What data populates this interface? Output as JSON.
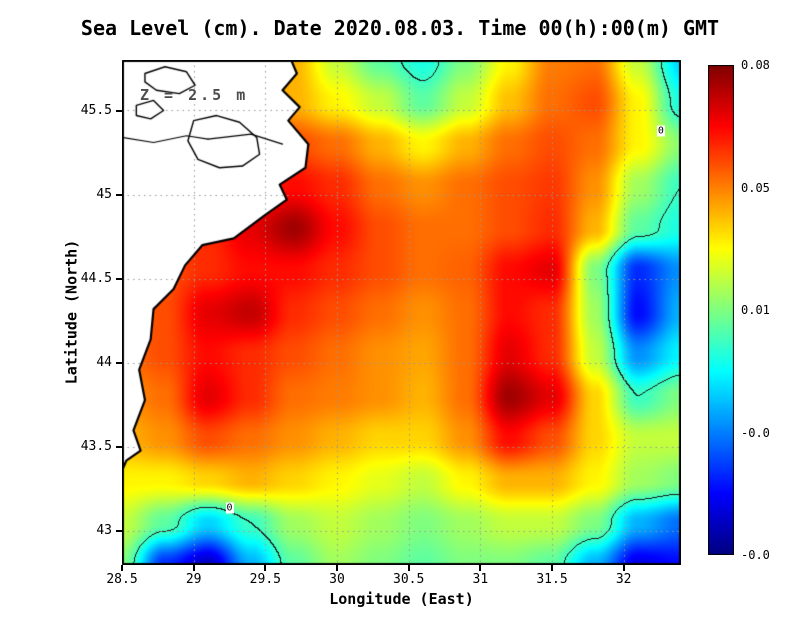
{
  "title": "Sea Level (cm). Date 2020.08.03. Time 00(h):00(m) GMT",
  "annotation": "Z = 2.5 m",
  "axes": {
    "x_label": "Longitude (East)",
    "y_label": "Latitude (North)",
    "x_ticks": [
      "28.5",
      "29",
      "29.5",
      "30",
      "30.5",
      "31",
      "31.5",
      "32"
    ],
    "x_tick_values": [
      28.5,
      29,
      29.5,
      30,
      30.5,
      31,
      31.5,
      32
    ],
    "y_ticks": [
      "43",
      "43.5",
      "44",
      "44.5",
      "45",
      "45.5"
    ],
    "y_tick_values": [
      43,
      43.5,
      44,
      44.5,
      45,
      45.5
    ]
  },
  "colorbar": {
    "labels": [
      "0.08",
      "0.05",
      "0.01",
      "-0.0",
      "-0.0"
    ],
    "vmin": -0.065,
    "vmax": 0.085
  },
  "chart_data": {
    "type": "heatmap",
    "title": "Sea Level (cm). Date 2020.08.03. Time 00(h):00(m) GMT",
    "xlabel": "Longitude (East)",
    "ylabel": "Latitude (North)",
    "xlim": [
      28.5,
      32.4
    ],
    "ylim": [
      42.8,
      45.8
    ],
    "colormap": "jet",
    "grid": "dotted",
    "legend_position": "right-colorbar",
    "zero_contour_label": "0",
    "zero_contour_labels": [
      {
        "lon": 29.25,
        "lat": 43.14
      },
      {
        "lon": 32.26,
        "lat": 45.38
      }
    ],
    "lon": [
      28.5,
      28.8,
      29.1,
      29.4,
      29.7,
      30.0,
      30.3,
      30.6,
      30.9,
      31.2,
      31.5,
      31.8,
      32.1,
      32.4
    ],
    "lat": [
      45.8,
      45.55,
      45.3,
      45.05,
      44.8,
      44.55,
      44.3,
      44.05,
      43.8,
      43.55,
      43.3,
      43.05,
      42.8
    ],
    "values_cm": [
      [
        0.05,
        0.05,
        0.05,
        0.05,
        0.04,
        0.02,
        0.005,
        -0.005,
        0.01,
        0.03,
        0.048,
        0.05,
        0.02,
        -0.015
      ],
      [
        0.05,
        0.05,
        0.05,
        0.05,
        0.04,
        0.03,
        0.02,
        0.005,
        0.02,
        0.038,
        0.05,
        0.055,
        0.03,
        -0.005
      ],
      [
        0.05,
        0.05,
        0.05,
        0.055,
        0.055,
        0.05,
        0.04,
        0.03,
        0.04,
        0.05,
        0.055,
        0.05,
        0.03,
        0.012
      ],
      [
        0.055,
        0.055,
        0.055,
        0.06,
        0.065,
        0.06,
        0.05,
        0.045,
        0.05,
        0.055,
        0.058,
        0.045,
        0.015,
        0.0
      ],
      [
        0.055,
        0.055,
        0.06,
        0.07,
        0.08,
        0.065,
        0.055,
        0.05,
        0.05,
        0.055,
        0.06,
        0.04,
        0.005,
        -0.005
      ],
      [
        0.05,
        0.055,
        0.06,
        0.065,
        0.065,
        0.06,
        0.055,
        0.05,
        0.052,
        0.065,
        0.07,
        0.01,
        -0.04,
        -0.025
      ],
      [
        0.05,
        0.055,
        0.07,
        0.075,
        0.06,
        0.055,
        0.05,
        0.045,
        0.05,
        0.065,
        0.06,
        0.015,
        -0.045,
        -0.02
      ],
      [
        0.05,
        0.055,
        0.065,
        0.06,
        0.055,
        0.05,
        0.045,
        0.042,
        0.05,
        0.07,
        0.06,
        0.02,
        -0.025,
        -0.01
      ],
      [
        0.045,
        0.05,
        0.07,
        0.06,
        0.05,
        0.048,
        0.045,
        0.04,
        0.05,
        0.08,
        0.07,
        0.035,
        0.0,
        0.01
      ],
      [
        0.04,
        0.045,
        0.055,
        0.05,
        0.045,
        0.04,
        0.035,
        0.035,
        0.045,
        0.065,
        0.055,
        0.035,
        0.02,
        0.02
      ],
      [
        0.03,
        0.03,
        0.035,
        0.04,
        0.035,
        0.03,
        0.025,
        0.02,
        0.03,
        0.04,
        0.04,
        0.03,
        0.015,
        0.01
      ],
      [
        0.02,
        0.005,
        -0.015,
        0.0,
        0.015,
        0.02,
        0.015,
        0.01,
        0.015,
        0.02,
        0.02,
        0.01,
        -0.02,
        -0.03
      ],
      [
        0.01,
        -0.04,
        -0.055,
        -0.02,
        0.005,
        0.015,
        0.01,
        0.005,
        0.01,
        0.01,
        0.005,
        -0.02,
        -0.05,
        -0.045
      ]
    ],
    "colors": {
      "land": "#ffffff",
      "coastline": "#000000",
      "grid": "#999999",
      "colorbar_top": "#8b0000",
      "colorbar_bottom": "#00008b"
    }
  },
  "geo": {
    "coastline": [
      [
        29.68,
        45.8
      ],
      [
        29.72,
        45.72
      ],
      [
        29.62,
        45.62
      ],
      [
        29.74,
        45.52
      ],
      [
        29.66,
        45.44
      ],
      [
        29.8,
        45.3
      ],
      [
        29.78,
        45.16
      ],
      [
        29.6,
        45.06
      ],
      [
        29.65,
        44.97
      ],
      [
        29.5,
        44.88
      ],
      [
        29.28,
        44.74
      ],
      [
        29.06,
        44.7
      ],
      [
        28.94,
        44.58
      ],
      [
        28.86,
        44.44
      ],
      [
        28.72,
        44.32
      ],
      [
        28.7,
        44.14
      ],
      [
        28.62,
        43.96
      ],
      [
        28.66,
        43.78
      ],
      [
        28.58,
        43.6
      ],
      [
        28.63,
        43.48
      ],
      [
        28.53,
        43.42
      ],
      [
        28.5,
        43.36
      ]
    ],
    "lakes": [
      [
        [
          29.0,
          45.44
        ],
        [
          29.16,
          45.47
        ],
        [
          29.32,
          45.43
        ],
        [
          29.44,
          45.34
        ],
        [
          29.46,
          45.24
        ],
        [
          29.34,
          45.17
        ],
        [
          29.18,
          45.16
        ],
        [
          29.03,
          45.21
        ],
        [
          28.96,
          45.32
        ],
        [
          29.0,
          45.44
        ]
      ],
      [
        [
          28.66,
          45.72
        ],
        [
          28.8,
          45.76
        ],
        [
          28.95,
          45.73
        ],
        [
          29.01,
          45.65
        ],
        [
          28.9,
          45.6
        ],
        [
          28.74,
          45.62
        ],
        [
          28.66,
          45.67
        ],
        [
          28.66,
          45.72
        ]
      ],
      [
        [
          28.6,
          45.53
        ],
        [
          28.72,
          45.56
        ],
        [
          28.79,
          45.5
        ],
        [
          28.7,
          45.45
        ],
        [
          28.6,
          45.47
        ],
        [
          28.6,
          45.53
        ]
      ]
    ],
    "rivers": [
      [
        [
          28.5,
          45.34
        ],
        [
          28.72,
          45.31
        ],
        [
          28.95,
          45.35
        ],
        [
          29.1,
          45.33
        ]
      ],
      [
        [
          29.1,
          45.33
        ],
        [
          29.4,
          45.36
        ],
        [
          29.62,
          45.3
        ]
      ]
    ]
  }
}
